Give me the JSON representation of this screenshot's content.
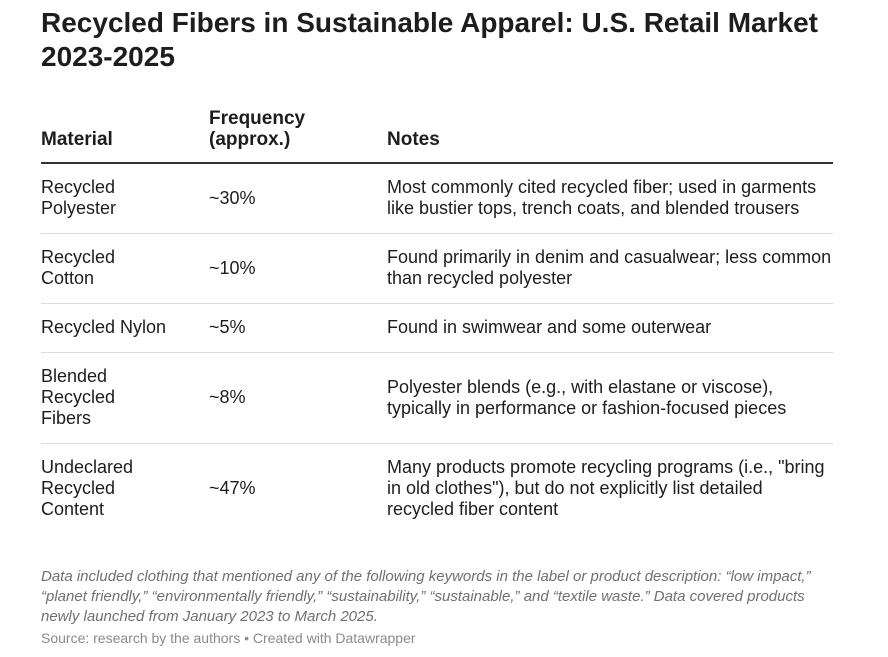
{
  "chart_data": {
    "type": "table",
    "title": "Recycled Fibers in Sustainable Apparel: U.S. Retail Market 2023-2025",
    "columns": [
      "Material",
      "Frequency (approx.)",
      "Notes"
    ],
    "rows": [
      {
        "material": "Recycled Polyester",
        "frequency": "~30%",
        "notes": "Most commonly cited recycled fiber; used in garments like bustier tops, trench coats, and blended trousers"
      },
      {
        "material": "Recycled Cotton",
        "frequency": "~10%",
        "notes": "Found primarily in denim and casualwear; less common than recycled polyester"
      },
      {
        "material": "Recycled Nylon",
        "frequency": "~5%",
        "notes": "Found in swimwear and some outerwear"
      },
      {
        "material": "Blended Recycled Fibers",
        "frequency": "~8%",
        "notes": "Polyester blends (e.g., with elastane or viscose), typically in performance or fashion-focused pieces"
      },
      {
        "material": "Undeclared Recycled Content",
        "frequency": "~47%",
        "notes": "Many products promote recycling programs (i.e., \"bring in old clothes\"), but do not explicitly list detailed recycled fiber content"
      }
    ],
    "footnote": "Data included clothing that mentioned any of the following keywords in the label or product description: “low impact,” “planet friendly,” “environmentally friendly,” “sustainability,” “sustainable,” and “textile waste.” Data covered products newly launched from January 2023 to March 2025.",
    "source": "Source: research by the authors • Created with Datawrapper"
  }
}
